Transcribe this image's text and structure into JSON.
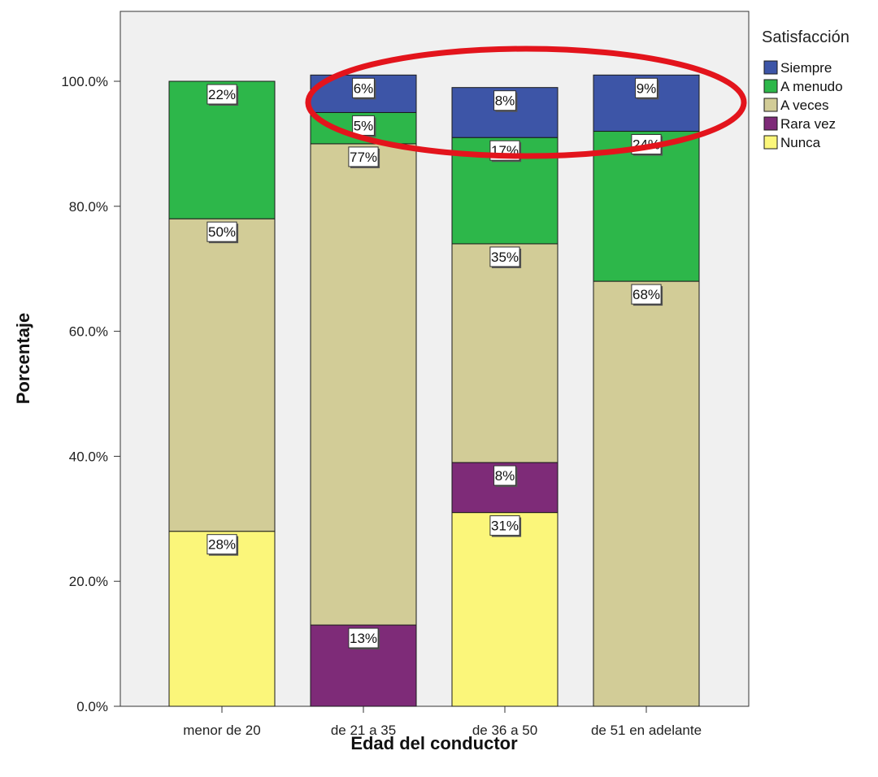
{
  "chart_data": {
    "type": "bar",
    "stacked": true,
    "xlabel": "Edad del conductor",
    "ylabel": "Porcentaje",
    "ylim": [
      0,
      100
    ],
    "yticks": [
      "0.0%",
      "20.0%",
      "40.0%",
      "60.0%",
      "80.0%",
      "100.0%"
    ],
    "categories": [
      "menor de 20",
      "de 21 a 35",
      "de 36 a 50",
      "de 51 en adelante"
    ],
    "legend_title": "Satisfacción",
    "legend_position": "top-right",
    "series": [
      {
        "name": "Nunca",
        "color": "#fbf67a",
        "values": [
          28,
          0,
          31,
          0
        ],
        "labels": [
          "28%",
          "",
          "31%",
          ""
        ]
      },
      {
        "name": "Rara vez",
        "color": "#7e2b78",
        "values": [
          0,
          13,
          8,
          0
        ],
        "labels": [
          "",
          "13%",
          "8%",
          ""
        ]
      },
      {
        "name": "A veces",
        "color": "#d2cc97",
        "values": [
          50,
          77,
          35,
          68
        ],
        "labels": [
          "50%",
          "77%",
          "35%",
          "68%"
        ]
      },
      {
        "name": "A menudo",
        "color": "#2db74a",
        "values": [
          22,
          5,
          17,
          24
        ],
        "labels": [
          "22%",
          "5%",
          "17%",
          "24%"
        ]
      },
      {
        "name": "Siempre",
        "color": "#3d55a7",
        "values": [
          0,
          6,
          8,
          9
        ],
        "labels": [
          "",
          "6%",
          "8%",
          "9%"
        ]
      }
    ],
    "legend_order": [
      "Siempre",
      "A menudo",
      "A veces",
      "Rara vez",
      "Nunca"
    ],
    "annotation": {
      "type": "ellipse",
      "color": "#e3141c",
      "target": "Siempre segment row"
    },
    "plot_background": "#f0f0f0"
  }
}
